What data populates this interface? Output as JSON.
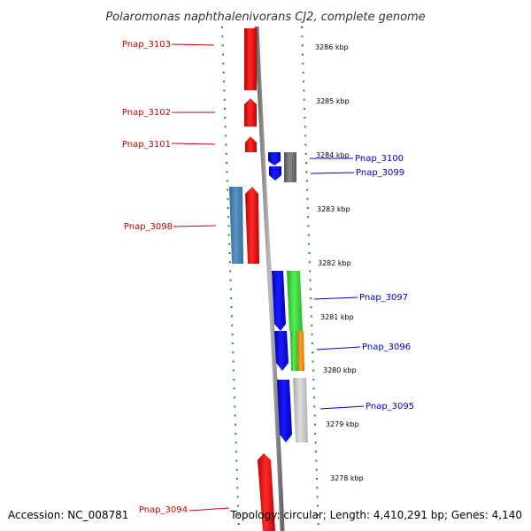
{
  "title": "Polaromonas naphthalenivorans CJ2, complete genome",
  "footer": {
    "accession": "Accession: NC_008781",
    "summary": "Topology: circular; Length: 4,410,291 bp; Genes: 4,140"
  },
  "colors": {
    "forward_label": "#cc0000",
    "reverse_label": "#0000cc",
    "ruler": "#228b22",
    "backbone": "#888888"
  },
  "kbp_ticks": [
    "3286 kbp",
    "3285 kbp",
    "3284 kbp",
    "3283 kbp",
    "3282 kbp",
    "3281 kbp",
    "3280 kbp",
    "3279 kbp",
    "3278 kbp"
  ],
  "genes": [
    {
      "label": "Pnap_3103",
      "side": "left"
    },
    {
      "label": "Pnap_3102",
      "side": "left"
    },
    {
      "label": "Pnap_3101",
      "side": "left"
    },
    {
      "label": "Pnap_3100",
      "side": "right"
    },
    {
      "label": "Pnap_3099",
      "side": "right"
    },
    {
      "label": "Pnap_3098",
      "side": "left"
    },
    {
      "label": "Pnap_3097",
      "side": "right"
    },
    {
      "label": "Pnap_3096",
      "side": "right"
    },
    {
      "label": "Pnap_3095",
      "side": "right"
    },
    {
      "label": "Pnap_3094",
      "side": "left"
    }
  ]
}
